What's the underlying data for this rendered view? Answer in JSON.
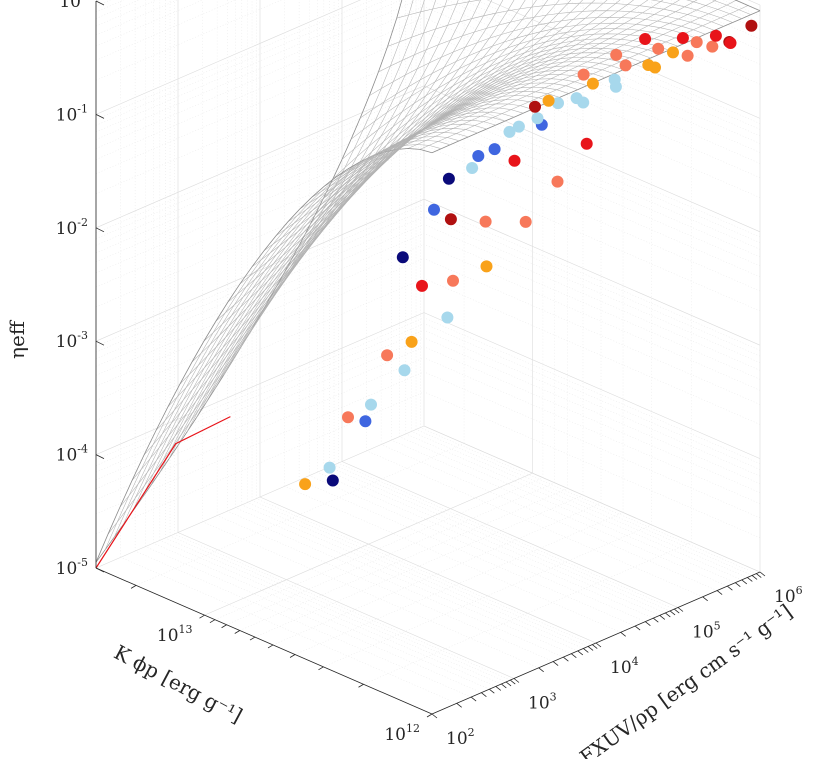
{
  "chart_data": {
    "type": "scatter",
    "title": "",
    "xlabel": "K ϕp [erg g⁻¹]",
    "ylabel": "FXUV/ρp [erg cm s⁻¹ g⁻¹]",
    "zlabel": "ηeff",
    "xscale": "log",
    "yscale": "log",
    "zscale": "log",
    "xlim": [
      1000000000000.0,
      30000000000000.0
    ],
    "ylim": [
      100,
      1000000
    ],
    "zlim": [
      1e-05,
      1
    ],
    "x_ticks": [
      {
        "base": "10",
        "exp": "12"
      },
      {
        "base": "10",
        "exp": "13"
      }
    ],
    "y_ticks": [
      {
        "base": "10",
        "exp": "2"
      },
      {
        "base": "10",
        "exp": "3"
      },
      {
        "base": "10",
        "exp": "4"
      },
      {
        "base": "10",
        "exp": "5"
      },
      {
        "base": "10",
        "exp": "6"
      }
    ],
    "z_ticks": [
      {
        "base": "10",
        "exp": "0"
      },
      {
        "base": "10",
        "exp": "-1"
      },
      {
        "base": "10",
        "exp": "-2"
      },
      {
        "base": "10",
        "exp": "-3"
      },
      {
        "base": "10",
        "exp": "-4"
      },
      {
        "base": "10",
        "exp": "-5"
      }
    ],
    "surface": "fitted efficiency surface (gray mesh) with red boundary curve at the low-flux edge",
    "colors": {
      "mesh": "#b3b3b3",
      "boundary": "#e8141a",
      "navy": "#0a0a7a",
      "royal": "#3f66e0",
      "lightblue": "#a7d8ec",
      "orange": "#f9a21a",
      "salmon": "#f7785a",
      "red": "#e8141a",
      "darkred": "#b01010"
    },
    "points": [
      {
        "x": 1050000000000.0,
        "y": 900000,
        "z": 0.65,
        "color": "darkred"
      },
      {
        "x": 1200000000000.0,
        "y": 700000,
        "z": 0.45,
        "color": "darkred"
      },
      {
        "x": 1050000000000.0,
        "y": 500000,
        "z": 0.55,
        "color": "red"
      },
      {
        "x": 1050000000000.0,
        "y": 300000,
        "z": 0.6,
        "color": "salmon"
      },
      {
        "x": 1050000000000.0,
        "y": 150000,
        "z": 0.62,
        "color": "salmon"
      },
      {
        "x": 1050000000000.0,
        "y": 60000,
        "z": 0.65,
        "color": "orange"
      },
      {
        "x": 1050000000000.0,
        "y": 20000,
        "z": 0.62,
        "color": "lightblue"
      },
      {
        "x": 1050000000000.0,
        "y": 8000,
        "z": 0.6,
        "color": "lightblue"
      },
      {
        "x": 1050000000000.0,
        "y": 2500,
        "z": 0.55,
        "color": "royal"
      },
      {
        "x": 1300000000000.0,
        "y": 600000,
        "z": 0.5,
        "color": "red"
      },
      {
        "x": 1300000000000.0,
        "y": 350000,
        "z": 0.52,
        "color": "salmon"
      },
      {
        "x": 1300000000000.0,
        "y": 180000,
        "z": 0.52,
        "color": "orange"
      },
      {
        "x": 1300000000000.0,
        "y": 90000,
        "z": 0.5,
        "color": "orange"
      },
      {
        "x": 1300000000000.0,
        "y": 35000,
        "z": 0.5,
        "color": "lightblue"
      },
      {
        "x": 1300000000000.0,
        "y": 12000,
        "z": 0.48,
        "color": "lightblue"
      },
      {
        "x": 1300000000000.0,
        "y": 4000,
        "z": 0.45,
        "color": "lightblue"
      },
      {
        "x": 1300000000000.0,
        "y": 1200,
        "z": 0.35,
        "color": "royal"
      },
      {
        "x": 1700000000000.0,
        "y": 500000,
        "z": 0.4,
        "color": "red"
      },
      {
        "x": 1700000000000.0,
        "y": 250000,
        "z": 0.4,
        "color": "salmon"
      },
      {
        "x": 1700000000000.0,
        "y": 100000,
        "z": 0.38,
        "color": "salmon"
      },
      {
        "x": 1700000000000.0,
        "y": 40000,
        "z": 0.35,
        "color": "orange"
      },
      {
        "x": 1700000000000.0,
        "y": 15000,
        "z": 0.32,
        "color": "lightblue"
      },
      {
        "x": 1700000000000.0,
        "y": 5000,
        "z": 0.28,
        "color": "lightblue"
      },
      {
        "x": 1700000000000.0,
        "y": 1600,
        "z": 0.22,
        "color": "royal"
      },
      {
        "x": 1700000000000.0,
        "y": 700,
        "z": 0.18,
        "color": "navy"
      },
      {
        "x": 2400000000000.0,
        "y": 450000,
        "z": 0.3,
        "color": "red"
      },
      {
        "x": 2400000000000.0,
        "y": 200000,
        "z": 0.28,
        "color": "salmon"
      },
      {
        "x": 2400000000000.0,
        "y": 80000,
        "z": 0.25,
        "color": "salmon"
      },
      {
        "x": 2400000000000.0,
        "y": 30000,
        "z": 0.2,
        "color": "orange"
      },
      {
        "x": 2400000000000.0,
        "y": 10000,
        "z": 0.15,
        "color": "lightblue"
      },
      {
        "x": 2400000000000.0,
        "y": 3500,
        "z": 0.1,
        "color": "lightblue"
      },
      {
        "x": 2400000000000.0,
        "y": 1200,
        "z": 0.06,
        "color": "royal"
      },
      {
        "x": 2400000000000.0,
        "y": 500,
        "z": 0.03,
        "color": "navy"
      },
      {
        "x": 4500000000000.0,
        "y": 500000,
        "z": 0.02,
        "color": "red"
      },
      {
        "x": 4500000000000.0,
        "y": 220000,
        "z": 0.012,
        "color": "salmon"
      },
      {
        "x": 4500000000000.0,
        "y": 90000,
        "z": 0.007,
        "color": "salmon"
      },
      {
        "x": 4500000000000.0,
        "y": 30000,
        "z": 0.004,
        "color": "orange"
      },
      {
        "x": 4500000000000.0,
        "y": 10000,
        "z": 0.002,
        "color": "lightblue"
      },
      {
        "x": 4500000000000.0,
        "y": 3000,
        "z": 0.001,
        "color": "lightblue"
      },
      {
        "x": 4500000000000.0,
        "y": 1000,
        "z": 0.0005,
        "color": "royal"
      },
      {
        "x": 4500000000000.0,
        "y": 400,
        "z": 0.0002,
        "color": "navy"
      },
      {
        "x": 9000000000000.0,
        "y": 800000,
        "z": 0.02,
        "color": "darkred"
      },
      {
        "x": 9000000000000.0,
        "y": 450000,
        "z": 0.008,
        "color": "red"
      },
      {
        "x": 9000000000000.0,
        "y": 200000,
        "z": 0.003,
        "color": "salmon"
      },
      {
        "x": 9000000000000.0,
        "y": 80000,
        "z": 0.0012,
        "color": "salmon"
      },
      {
        "x": 9000000000000.0,
        "y": 25000,
        "z": 0.0005,
        "color": "orange"
      },
      {
        "x": 9000000000000.0,
        "y": 8000,
        "z": 0.0002,
        "color": "lightblue"
      },
      {
        "x": 9000000000000.0,
        "y": 2500,
        "z": 8e-05,
        "color": "lightblue"
      },
      {
        "x": 22000000000000.0,
        "y": 900000,
        "z": 0.0009,
        "color": "darkred"
      },
      {
        "x": 22000000000000.0,
        "y": 400000,
        "z": 0.0003,
        "color": "red"
      },
      {
        "x": 22000000000000.0,
        "y": 150000,
        "z": 0.0001,
        "color": "salmon"
      },
      {
        "x": 22000000000000.0,
        "y": 50000,
        "z": 4e-05,
        "color": "salmon"
      },
      {
        "x": 22000000000000.0,
        "y": 15000,
        "z": 1.5e-05,
        "color": "orange"
      }
    ]
  }
}
